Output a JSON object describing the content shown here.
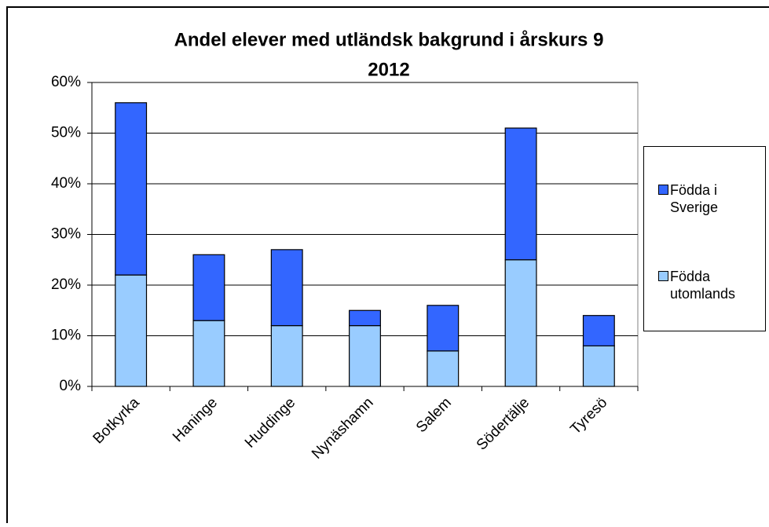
{
  "chart_data": {
    "type": "stacked_bar",
    "title": [
      "Andel elever med utländsk bakgrund i årskurs 9",
      "2012"
    ],
    "categories": [
      "Botkyrka",
      "Haninge",
      "Huddinge",
      "Nynäshamn",
      "Salem",
      "Södertälje",
      "Tyresö"
    ],
    "series": [
      {
        "name": "Födda utomlands",
        "color": "#99ccff",
        "values": [
          22,
          13,
          12,
          12,
          7,
          25,
          8
        ]
      },
      {
        "name": "Födda i Sverige",
        "color": "#3366ff",
        "values": [
          34,
          13,
          15,
          3,
          9,
          26,
          6
        ]
      }
    ],
    "ylim": [
      0,
      60
    ],
    "yticks": [
      {
        "value": 0,
        "label": "0%"
      },
      {
        "value": 10,
        "label": "10%"
      },
      {
        "value": 20,
        "label": "20%"
      },
      {
        "value": 30,
        "label": "30%"
      },
      {
        "value": 40,
        "label": "40%"
      },
      {
        "value": 50,
        "label": "50%"
      },
      {
        "value": 60,
        "label": "60%"
      }
    ],
    "grid": true,
    "legend": "right"
  }
}
